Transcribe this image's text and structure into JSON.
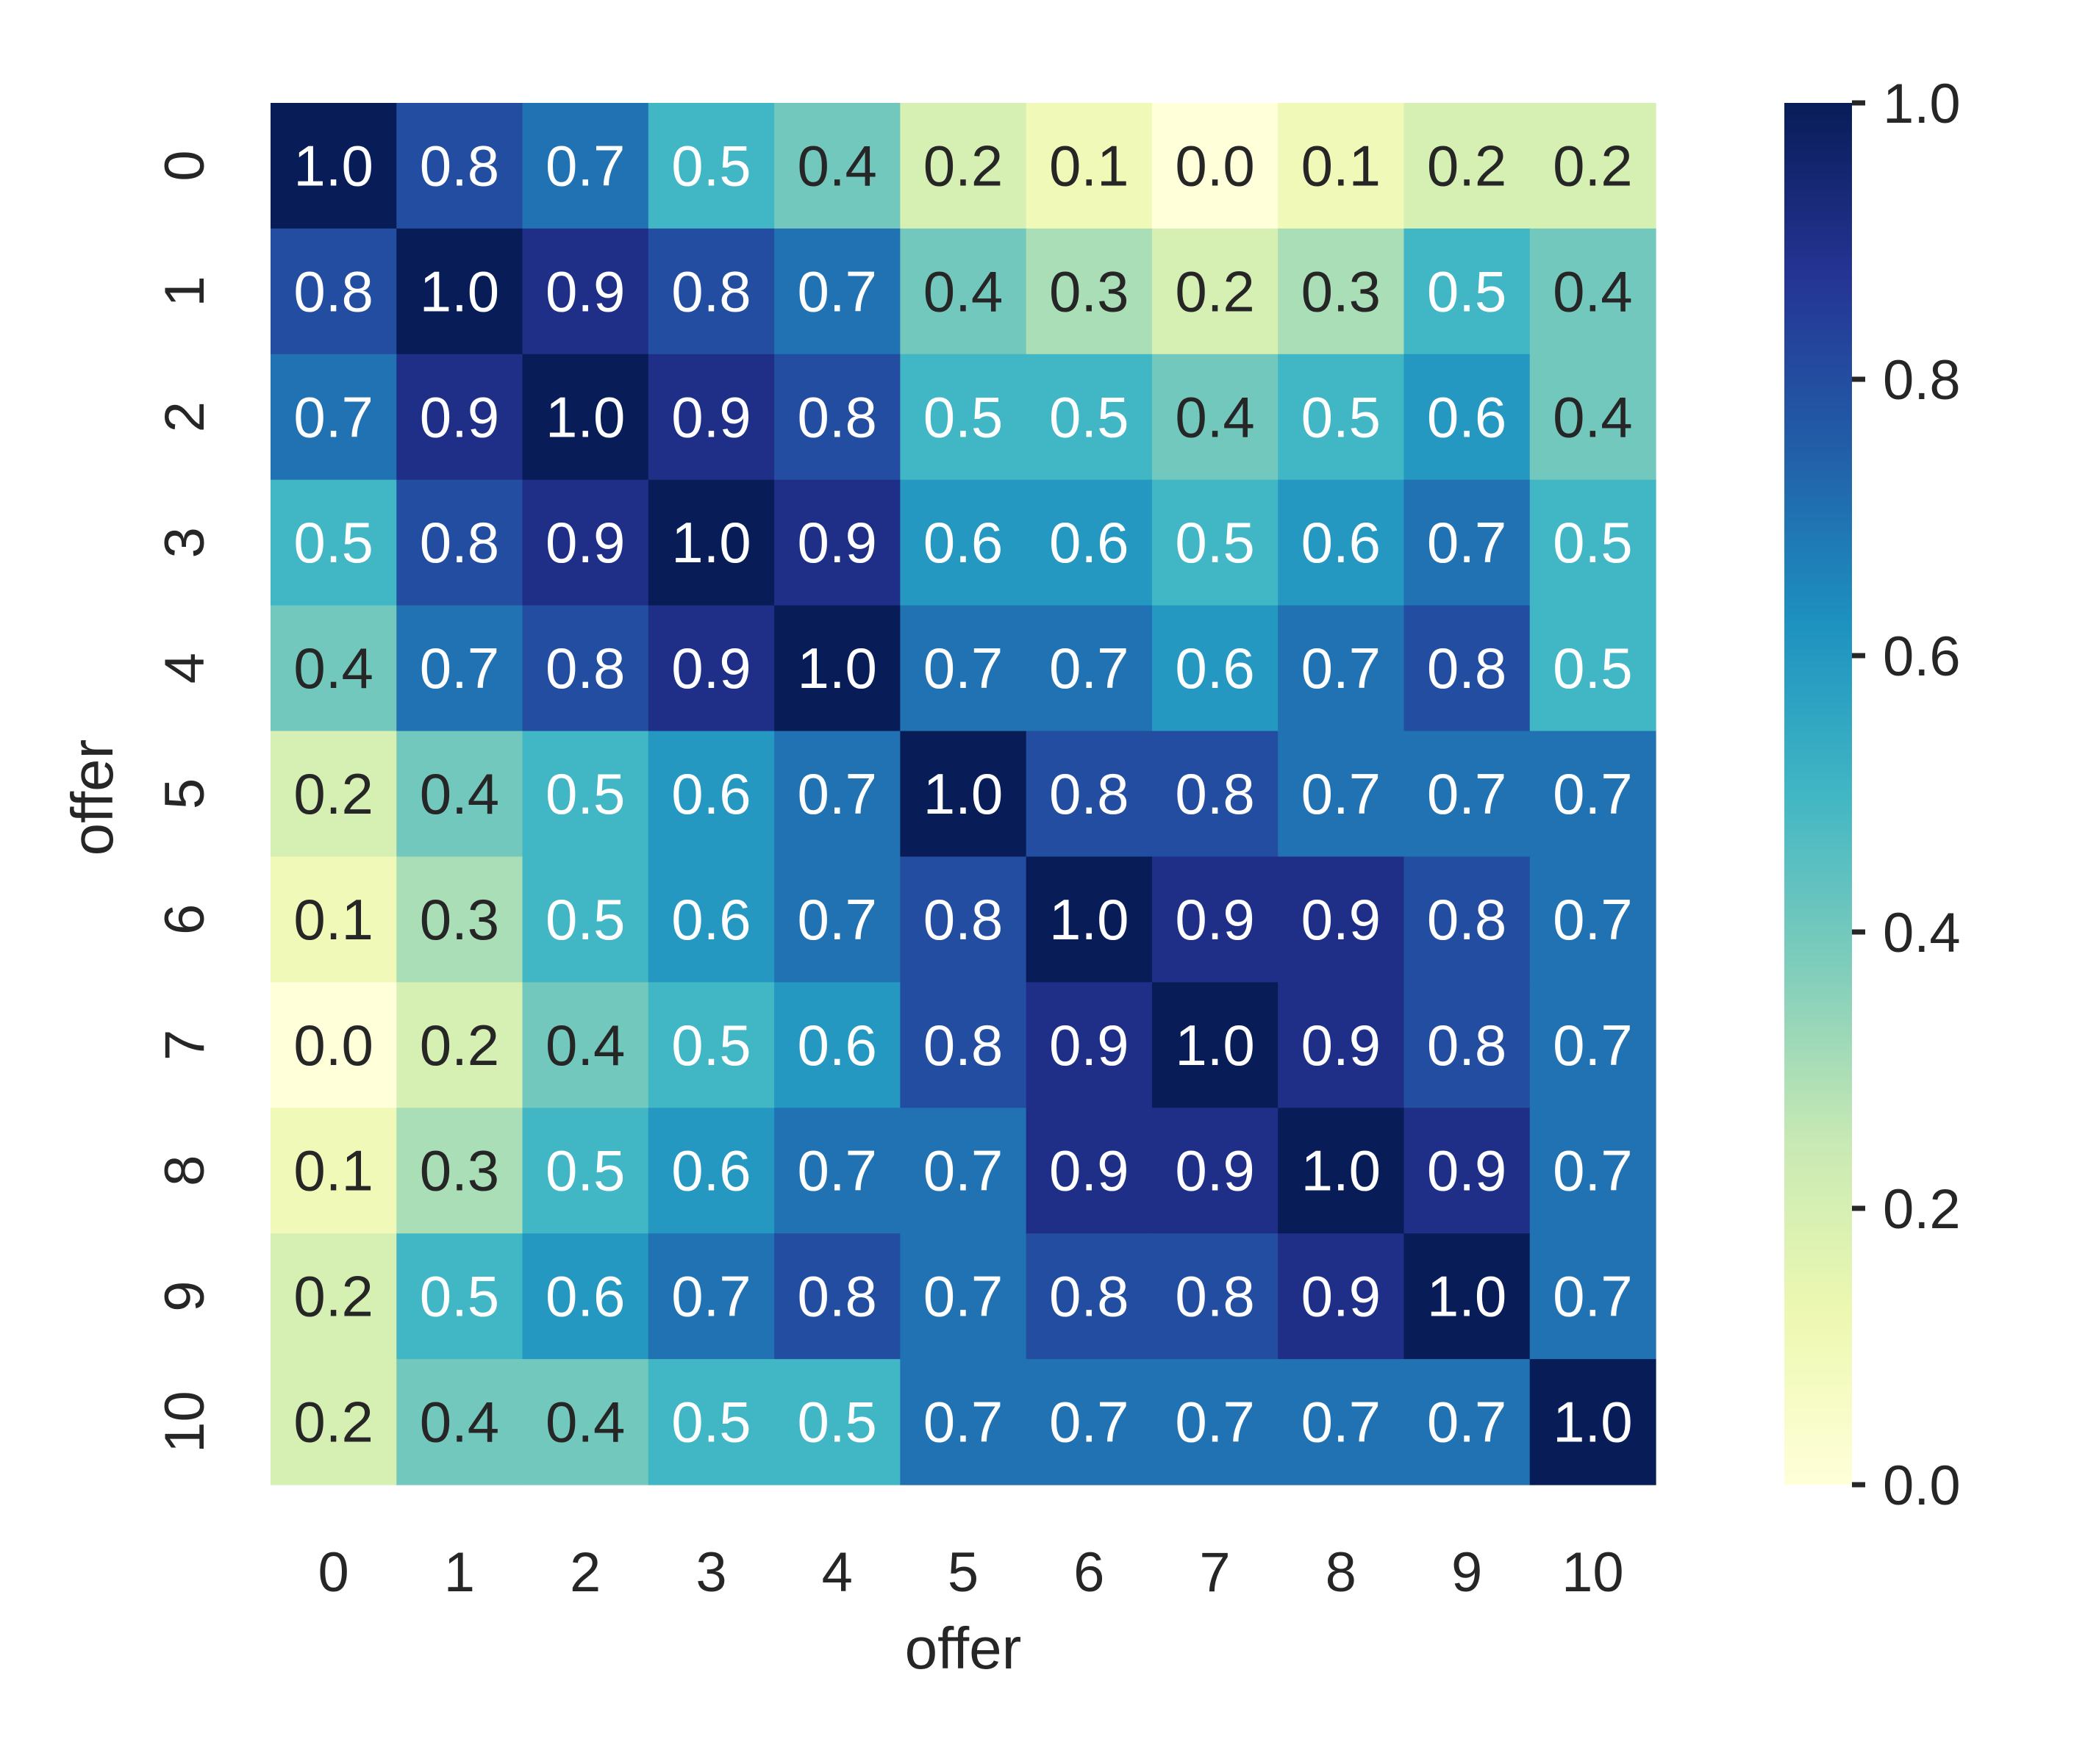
{
  "chart_data": {
    "type": "heatmap",
    "title": "",
    "xlabel": "offer",
    "ylabel": "offer",
    "x_categories": [
      "0",
      "1",
      "2",
      "3",
      "4",
      "5",
      "6",
      "7",
      "8",
      "9",
      "10"
    ],
    "y_categories": [
      "0",
      "1",
      "2",
      "3",
      "4",
      "5",
      "6",
      "7",
      "8",
      "9",
      "10"
    ],
    "values": [
      [
        1.0,
        0.8,
        0.7,
        0.5,
        0.4,
        0.2,
        0.1,
        0.0,
        0.1,
        0.2,
        0.2
      ],
      [
        0.8,
        1.0,
        0.9,
        0.8,
        0.7,
        0.4,
        0.3,
        0.2,
        0.3,
        0.5,
        0.4
      ],
      [
        0.7,
        0.9,
        1.0,
        0.9,
        0.8,
        0.5,
        0.5,
        0.4,
        0.5,
        0.6,
        0.4
      ],
      [
        0.5,
        0.8,
        0.9,
        1.0,
        0.9,
        0.6,
        0.6,
        0.5,
        0.6,
        0.7,
        0.5
      ],
      [
        0.4,
        0.7,
        0.8,
        0.9,
        1.0,
        0.7,
        0.7,
        0.6,
        0.7,
        0.8,
        0.5
      ],
      [
        0.2,
        0.4,
        0.5,
        0.6,
        0.7,
        1.0,
        0.8,
        0.8,
        0.7,
        0.7,
        0.7
      ],
      [
        0.1,
        0.3,
        0.5,
        0.6,
        0.7,
        0.8,
        1.0,
        0.9,
        0.9,
        0.8,
        0.7
      ],
      [
        0.0,
        0.2,
        0.4,
        0.5,
        0.6,
        0.8,
        0.9,
        1.0,
        0.9,
        0.8,
        0.7
      ],
      [
        0.1,
        0.3,
        0.5,
        0.6,
        0.7,
        0.7,
        0.9,
        0.9,
        1.0,
        0.9,
        0.7
      ],
      [
        0.2,
        0.5,
        0.6,
        0.7,
        0.8,
        0.7,
        0.8,
        0.8,
        0.9,
        1.0,
        0.7
      ],
      [
        0.2,
        0.4,
        0.4,
        0.5,
        0.5,
        0.7,
        0.7,
        0.7,
        0.7,
        0.7,
        1.0
      ]
    ],
    "value_range": [
      0.0,
      1.0
    ],
    "annotations": true,
    "annotation_format": "0.0",
    "colormap": "YlGnBu",
    "colorbar": {
      "ticks": [
        0.0,
        0.2,
        0.4,
        0.6,
        0.8,
        1.0
      ],
      "tick_labels": [
        "0.0",
        "0.2",
        "0.4",
        "0.6",
        "0.8",
        "1.0"
      ],
      "placement": "right"
    },
    "grid": false,
    "legend": "none"
  },
  "colors": {
    "colormap_stops": [
      "#ffffd9",
      "#edf8b1",
      "#c7e9b4",
      "#7fcdbb",
      "#41b6c4",
      "#1d91c0",
      "#225ea8",
      "#253494",
      "#081d58"
    ],
    "text_dark": "#262626",
    "text_light": "#ffffff"
  }
}
